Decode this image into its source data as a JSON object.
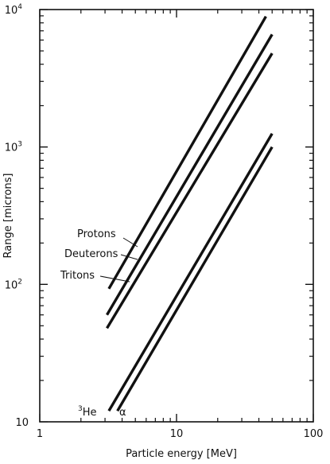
{
  "chart_data": {
    "type": "line",
    "title": "",
    "xlabel": "Particle energy [MeV]",
    "ylabel": "Range [microns]",
    "xscale": "log",
    "yscale": "log",
    "xlim": [
      1,
      100
    ],
    "ylim": [
      10,
      10000
    ],
    "grid": false,
    "legend": "inline labels",
    "x_tick_labels": [
      "1",
      "10",
      "100"
    ],
    "y_tick_labels": [
      {
        "base": "10",
        "exp": ""
      },
      {
        "base": "10",
        "exp": "2"
      },
      {
        "base": "10",
        "exp": "3"
      },
      {
        "base": "10",
        "exp": "4"
      }
    ],
    "series": [
      {
        "name": "Protons",
        "x": [
          3.2,
          45
        ],
        "y": [
          93,
          8900
        ]
      },
      {
        "name": "Deuterons",
        "x": [
          3.1,
          50
        ],
        "y": [
          60,
          6600
        ]
      },
      {
        "name": "Tritons",
        "x": [
          3.1,
          50
        ],
        "y": [
          48,
          4800
        ]
      },
      {
        "name": "³He",
        "x": [
          3.2,
          50
        ],
        "y": [
          12,
          1250
        ]
      },
      {
        "name": "α",
        "x": [
          3.7,
          50
        ],
        "y": [
          12,
          1000
        ]
      }
    ]
  },
  "labels": {
    "he3_sup": "3",
    "he3_main": "He",
    "alpha": "α"
  },
  "style": {
    "line_color": "#111111"
  }
}
